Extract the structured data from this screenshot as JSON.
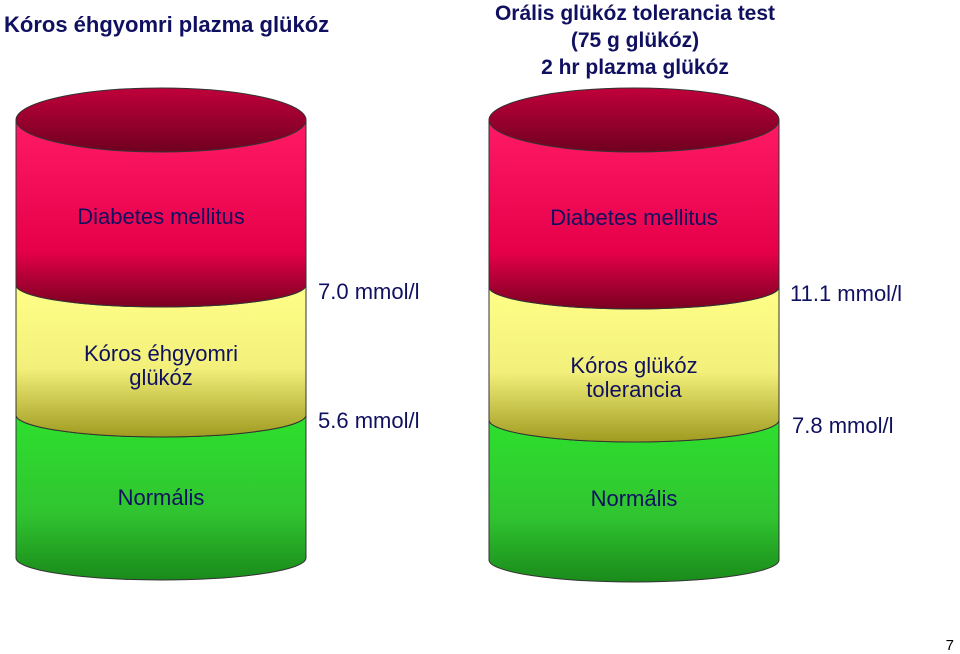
{
  "left": {
    "title": "Kóros éhgyomri plazma glükóz",
    "zones": {
      "top": "Diabetes mellitus",
      "middle_line1": "Kóros éhgyomri",
      "middle_line2": "glükóz",
      "bottom": "Normális"
    },
    "thresholds": {
      "upper": "7.0 mmol/l",
      "lower": "5.6 mmol/l"
    }
  },
  "right": {
    "title_lines": [
      "Orális glükóz tolerancia test",
      "(75 g glükóz)",
      "2 hr plazma glükóz"
    ],
    "zones": {
      "top": "Diabetes mellitus",
      "middle_line1": "Kóros glükóz",
      "middle_line2": "tolerancia",
      "bottom": "Normális"
    },
    "thresholds": {
      "upper": "11.1 mmol/l",
      "lower": "7.8 mmol/l"
    }
  },
  "colors": {
    "diabetes": "#e8004a",
    "impaired": "#f0f080",
    "normal": "#30cc30",
    "text": "#101060"
  },
  "page_number": "7"
}
